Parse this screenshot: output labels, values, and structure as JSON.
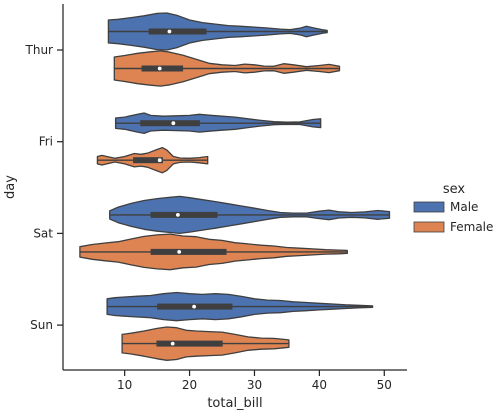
{
  "chart_data": {
    "type": "violin",
    "orientation": "horizontal",
    "xlabel": "total_bill",
    "ylabel": "day",
    "xlim": [
      0.5,
      53.5
    ],
    "xticks": [
      10,
      20,
      30,
      40,
      50
    ],
    "categories": [
      "Thur",
      "Fri",
      "Sat",
      "Sun"
    ],
    "legend": {
      "title": "sex",
      "position": "right",
      "entries": [
        "Male",
        "Female"
      ]
    },
    "grid": false,
    "series": [
      {
        "name": "Male",
        "color": "#4c72b0",
        "data": [
          {
            "day": "Thur",
            "min": 7.5,
            "q1": 13.7,
            "median": 16.9,
            "q3": 22.6,
            "max": 41.2,
            "density": [
              [
                7.5,
                0.62
              ],
              [
                9,
                0.66
              ],
              [
                11,
                0.75
              ],
              [
                13,
                0.85
              ],
              [
                15,
                0.98
              ],
              [
                16.5,
                1.0
              ],
              [
                18,
                0.88
              ],
              [
                20,
                0.62
              ],
              [
                22,
                0.48
              ],
              [
                24,
                0.4
              ],
              [
                26,
                0.32
              ],
              [
                28,
                0.28
              ],
              [
                30,
                0.24
              ],
              [
                32,
                0.19
              ],
              [
                34,
                0.13
              ],
              [
                35.5,
                0.1
              ],
              [
                37,
                0.18
              ],
              [
                38,
                0.28
              ],
              [
                39,
                0.2
              ],
              [
                40.5,
                0.09
              ],
              [
                41.2,
                0.06
              ]
            ]
          },
          {
            "day": "Fri",
            "min": 8.6,
            "q1": 12.4,
            "median": 17.5,
            "q3": 21.6,
            "max": 40.2,
            "density": [
              [
                8.6,
                0.28
              ],
              [
                10,
                0.33
              ],
              [
                12,
                0.48
              ],
              [
                13,
                0.55
              ],
              [
                14,
                0.42
              ],
              [
                16,
                0.38
              ],
              [
                18,
                0.4
              ],
              [
                20,
                0.42
              ],
              [
                21.5,
                0.48
              ],
              [
                23,
                0.43
              ],
              [
                25,
                0.38
              ],
              [
                27,
                0.33
              ],
              [
                29,
                0.24
              ],
              [
                31,
                0.15
              ],
              [
                33,
                0.08
              ],
              [
                35,
                0.06
              ],
              [
                37,
                0.07
              ],
              [
                39,
                0.2
              ],
              [
                40.2,
                0.24
              ]
            ]
          },
          {
            "day": "Sat",
            "min": 7.7,
            "q1": 14.0,
            "median": 18.2,
            "q3": 24.3,
            "max": 50.8,
            "density": [
              [
                7.7,
                0.22
              ],
              [
                9,
                0.42
              ],
              [
                11,
                0.62
              ],
              [
                13,
                0.78
              ],
              [
                15,
                0.88
              ],
              [
                17,
                0.95
              ],
              [
                18.5,
                1.0
              ],
              [
                20,
                0.93
              ],
              [
                22,
                0.82
              ],
              [
                24,
                0.72
              ],
              [
                26,
                0.6
              ],
              [
                28,
                0.48
              ],
              [
                30,
                0.36
              ],
              [
                32,
                0.24
              ],
              [
                34,
                0.13
              ],
              [
                36,
                0.1
              ],
              [
                38,
                0.1
              ],
              [
                40,
                0.2
              ],
              [
                41.5,
                0.26
              ],
              [
                43,
                0.17
              ],
              [
                45,
                0.13
              ],
              [
                47,
                0.16
              ],
              [
                49,
                0.24
              ],
              [
                50.8,
                0.18
              ]
            ]
          },
          {
            "day": "Sun",
            "min": 7.3,
            "q1": 15.0,
            "median": 20.7,
            "q3": 26.6,
            "max": 48.2,
            "density": [
              [
                7.3,
                0.42
              ],
              [
                8.5,
                0.48
              ],
              [
                10,
                0.52
              ],
              [
                12,
                0.56
              ],
              [
                14,
                0.6
              ],
              [
                16,
                0.7
              ],
              [
                18,
                0.76
              ],
              [
                20,
                0.7
              ],
              [
                22,
                0.66
              ],
              [
                24,
                0.7
              ],
              [
                26,
                0.66
              ],
              [
                28,
                0.55
              ],
              [
                30,
                0.42
              ],
              [
                32,
                0.35
              ],
              [
                34,
                0.33
              ],
              [
                36,
                0.26
              ],
              [
                38,
                0.22
              ],
              [
                40,
                0.18
              ],
              [
                42,
                0.14
              ],
              [
                44,
                0.1
              ],
              [
                46,
                0.07
              ],
              [
                48.2,
                0.04
              ]
            ]
          }
        ]
      },
      {
        "name": "Female",
        "color": "#dd8452",
        "data": [
          {
            "day": "Thur",
            "min": 8.4,
            "q1": 12.6,
            "median": 15.4,
            "q3": 19.0,
            "max": 43.1,
            "density": [
              [
                8.4,
                0.62
              ],
              [
                10,
                0.7
              ],
              [
                12,
                0.82
              ],
              [
                14,
                0.9
              ],
              [
                15.5,
                0.95
              ],
              [
                17,
                0.88
              ],
              [
                19,
                0.72
              ],
              [
                21,
                0.5
              ],
              [
                23,
                0.28
              ],
              [
                25,
                0.2
              ],
              [
                27,
                0.16
              ],
              [
                28.5,
                0.24
              ],
              [
                30,
                0.2
              ],
              [
                31.5,
                0.13
              ],
              [
                33,
                0.12
              ],
              [
                34.5,
                0.26
              ],
              [
                36,
                0.2
              ],
              [
                38,
                0.1
              ],
              [
                40,
                0.16
              ],
              [
                41.5,
                0.22
              ],
              [
                43.1,
                0.12
              ]
            ]
          },
          {
            "day": "Fri",
            "min": 5.8,
            "q1": 11.3,
            "median": 15.4,
            "q3": 15.9,
            "max": 22.8,
            "density": [
              [
                5.8,
                0.2
              ],
              [
                6.5,
                0.26
              ],
              [
                7.5,
                0.18
              ],
              [
                8.5,
                0.1
              ],
              [
                10,
                0.2
              ],
              [
                11.5,
                0.36
              ],
              [
                12.5,
                0.32
              ],
              [
                13.5,
                0.38
              ],
              [
                15,
                0.58
              ],
              [
                15.8,
                0.68
              ],
              [
                16.5,
                0.55
              ],
              [
                17.5,
                0.2
              ],
              [
                18.5,
                0.12
              ],
              [
                20,
                0.1
              ],
              [
                21.5,
                0.14
              ],
              [
                22.8,
                0.2
              ]
            ]
          },
          {
            "day": "Sat",
            "min": 3.1,
            "q1": 14.0,
            "median": 18.4,
            "q3": 25.7,
            "max": 44.3,
            "density": [
              [
                3.1,
                0.28
              ],
              [
                5,
                0.4
              ],
              [
                7,
                0.48
              ],
              [
                9,
                0.55
              ],
              [
                11,
                0.7
              ],
              [
                13,
                0.84
              ],
              [
                15,
                0.92
              ],
              [
                17,
                0.96
              ],
              [
                19,
                0.86
              ],
              [
                21,
                0.82
              ],
              [
                23,
                0.68
              ],
              [
                25,
                0.62
              ],
              [
                27,
                0.5
              ],
              [
                29,
                0.43
              ],
              [
                31,
                0.36
              ],
              [
                33,
                0.32
              ],
              [
                35,
                0.24
              ],
              [
                37,
                0.2
              ],
              [
                39,
                0.16
              ],
              [
                41,
                0.12
              ],
              [
                43,
                0.1
              ],
              [
                44.3,
                0.08
              ]
            ]
          },
          {
            "day": "Sun",
            "min": 9.6,
            "q1": 14.9,
            "median": 17.4,
            "q3": 25.1,
            "max": 35.3,
            "density": [
              [
                9.6,
                0.5
              ],
              [
                11,
                0.56
              ],
              [
                13,
                0.68
              ],
              [
                15,
                0.82
              ],
              [
                16.5,
                0.9
              ],
              [
                18,
                0.86
              ],
              [
                19.5,
                0.72
              ],
              [
                21,
                0.68
              ],
              [
                23,
                0.65
              ],
              [
                25,
                0.62
              ],
              [
                27,
                0.5
              ],
              [
                29,
                0.36
              ],
              [
                31,
                0.3
              ],
              [
                33,
                0.28
              ],
              [
                35.3,
                0.2
              ]
            ]
          }
        ]
      }
    ]
  }
}
